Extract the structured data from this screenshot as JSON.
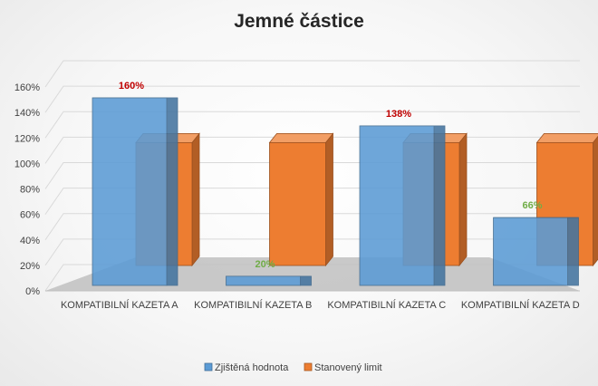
{
  "chart_data": {
    "type": "bar",
    "title": "Jemné částice",
    "categories": [
      "KOMPATIBILNÍ KAZETA A",
      "KOMPATIBILNÍ KAZETA B",
      "KOMPATIBILNÍ KAZETA C",
      "KOMPATIBILNÍ KAZETA D"
    ],
    "series": [
      {
        "name": "Zjištěná hodnota",
        "values": [
          160,
          20,
          138,
          66
        ],
        "color": "#5b9bd5"
      },
      {
        "name": "Stanovený limit",
        "values": [
          100,
          100,
          100,
          100
        ],
        "color": "#ed7d31"
      }
    ],
    "data_labels": [
      {
        "text": "160%",
        "color": "#c00000"
      },
      {
        "text": "20%",
        "color": "#70ad47"
      },
      {
        "text": "138%",
        "color": "#c00000"
      },
      {
        "text": "66%",
        "color": "#70ad47"
      }
    ],
    "y_ticks": [
      "0%",
      "20%",
      "40%",
      "60%",
      "80%",
      "100%",
      "120%",
      "140%",
      "160%"
    ],
    "ylim": [
      0,
      160
    ],
    "grid": true,
    "legend_position": "bottom",
    "style": "3d-clustered-column"
  }
}
